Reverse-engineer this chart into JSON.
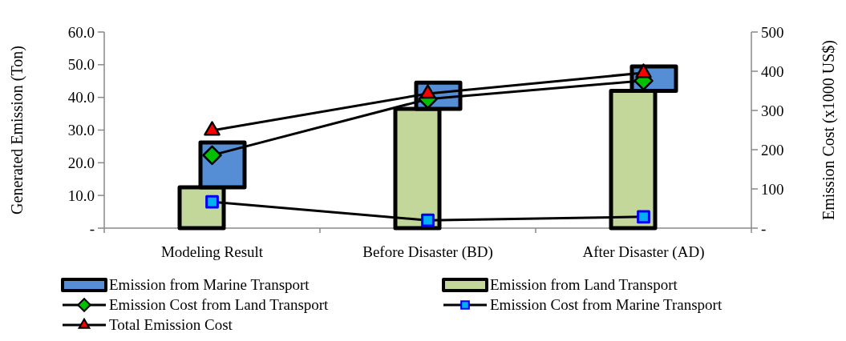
{
  "chart_data": {
    "type": "bar",
    "stacked": true,
    "ylabel": "Generated Emission (Ton)",
    "y2label": "Emission Cost (x1000 US$)",
    "categories": [
      "Modeling Result",
      "Before Disaster (BD)",
      "After Disaster (AD)"
    ],
    "ylim": [
      0,
      60
    ],
    "yticks": [
      {
        "value": 0,
        "label": "-"
      },
      {
        "value": 10,
        "label": "10.0"
      },
      {
        "value": 20,
        "label": "20.0"
      },
      {
        "value": 30,
        "label": "30.0"
      },
      {
        "value": 40,
        "label": "40.0"
      },
      {
        "value": 50,
        "label": "50.0"
      },
      {
        "value": 60,
        "label": "60.0"
      }
    ],
    "y2lim": [
      0,
      500
    ],
    "y2ticks": [
      {
        "value": 0,
        "label": "-"
      },
      100,
      200,
      300,
      400,
      500
    ],
    "legend": "bottom",
    "grid": false,
    "series": [
      {
        "name": "Emission from Land Transport",
        "color": "#c4d79b",
        "values": [
          12.5,
          36.5,
          42
        ]
      },
      {
        "name": "Emission from Marine Transport",
        "color": "#558ed5",
        "values": [
          13.7,
          8,
          7.5
        ]
      },
      {
        "name": "Emission Cost from Land Transport",
        "type": "line",
        "axis": "y2",
        "color": "#00c000",
        "marker": "diamond",
        "values": [
          186,
          329,
          376
        ]
      },
      {
        "name": "Emission Cost from Marine Transport",
        "type": "line",
        "axis": "y2",
        "color": "#00b0f0",
        "marker": "square",
        "values": [
          67,
          20,
          29
        ]
      },
      {
        "name": "Total Emission Cost",
        "type": "line",
        "axis": "y2",
        "color": "#ff0000",
        "marker": "triangle",
        "values": [
          249,
          343,
          396
        ]
      }
    ]
  }
}
